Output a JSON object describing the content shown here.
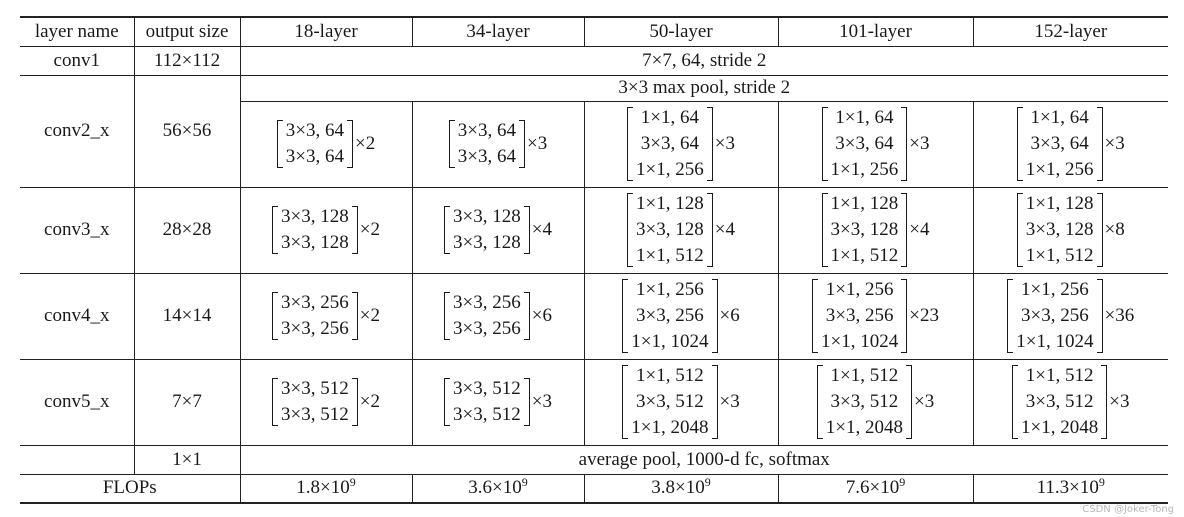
{
  "header": [
    "layer name",
    "output size",
    "18-layer",
    "34-layer",
    "50-layer",
    "101-layer",
    "152-layer"
  ],
  "conv1": {
    "name": "conv1",
    "size": "112×112",
    "spec": "7×7, 64, stride 2"
  },
  "pool": {
    "spec": "3×3 max pool, stride 2"
  },
  "stages": [
    {
      "name": "conv2_x",
      "size": "56×56",
      "blocks": [
        {
          "lines": [
            "3×3, 64",
            "3×3, 64"
          ],
          "mult": "×2"
        },
        {
          "lines": [
            "3×3, 64",
            "3×3, 64"
          ],
          "mult": "×3"
        },
        {
          "lines": [
            "1×1, 64",
            "3×3, 64",
            "1×1, 256"
          ],
          "mult": "×3"
        },
        {
          "lines": [
            "1×1, 64",
            "3×3, 64",
            "1×1, 256"
          ],
          "mult": "×3"
        },
        {
          "lines": [
            "1×1, 64",
            "3×3, 64",
            "1×1, 256"
          ],
          "mult": "×3"
        }
      ]
    },
    {
      "name": "conv3_x",
      "size": "28×28",
      "blocks": [
        {
          "lines": [
            "3×3, 128",
            "3×3, 128"
          ],
          "mult": "×2"
        },
        {
          "lines": [
            "3×3, 128",
            "3×3, 128"
          ],
          "mult": "×4"
        },
        {
          "lines": [
            "1×1, 128",
            "3×3, 128",
            "1×1, 512"
          ],
          "mult": "×4"
        },
        {
          "lines": [
            "1×1, 128",
            "3×3, 128",
            "1×1, 512"
          ],
          "mult": "×4"
        },
        {
          "lines": [
            "1×1, 128",
            "3×3, 128",
            "1×1, 512"
          ],
          "mult": "×8"
        }
      ]
    },
    {
      "name": "conv4_x",
      "size": "14×14",
      "blocks": [
        {
          "lines": [
            "3×3, 256",
            "3×3, 256"
          ],
          "mult": "×2"
        },
        {
          "lines": [
            "3×3, 256",
            "3×3, 256"
          ],
          "mult": "×6"
        },
        {
          "lines": [
            "1×1, 256",
            "3×3, 256",
            "1×1, 1024"
          ],
          "mult": "×6"
        },
        {
          "lines": [
            "1×1, 256",
            "3×3, 256",
            "1×1, 1024"
          ],
          "mult": "×23"
        },
        {
          "lines": [
            "1×1, 256",
            "3×3, 256",
            "1×1, 1024"
          ],
          "mult": "×36"
        }
      ]
    },
    {
      "name": "conv5_x",
      "size": "7×7",
      "blocks": [
        {
          "lines": [
            "3×3, 512",
            "3×3, 512"
          ],
          "mult": "×2"
        },
        {
          "lines": [
            "3×3, 512",
            "3×3, 512"
          ],
          "mult": "×3"
        },
        {
          "lines": [
            "1×1, 512",
            "3×3, 512",
            "1×1, 2048"
          ],
          "mult": "×3"
        },
        {
          "lines": [
            "1×1, 512",
            "3×3, 512",
            "1×1, 2048"
          ],
          "mult": "×3"
        },
        {
          "lines": [
            "1×1, 512",
            "3×3, 512",
            "1×1, 2048"
          ],
          "mult": "×3"
        }
      ]
    }
  ],
  "final": {
    "size": "1×1",
    "spec": "average pool, 1000-d fc, softmax"
  },
  "flops": {
    "label": "FLOPs",
    "values": [
      {
        "mant": "1.8×10",
        "exp": "9"
      },
      {
        "mant": "3.6×10",
        "exp": "9"
      },
      {
        "mant": "3.8×10",
        "exp": "9"
      },
      {
        "mant": "7.6×10",
        "exp": "9"
      },
      {
        "mant": "11.3×10",
        "exp": "9"
      }
    ]
  },
  "watermark": "CSDN @Joker-Tong"
}
